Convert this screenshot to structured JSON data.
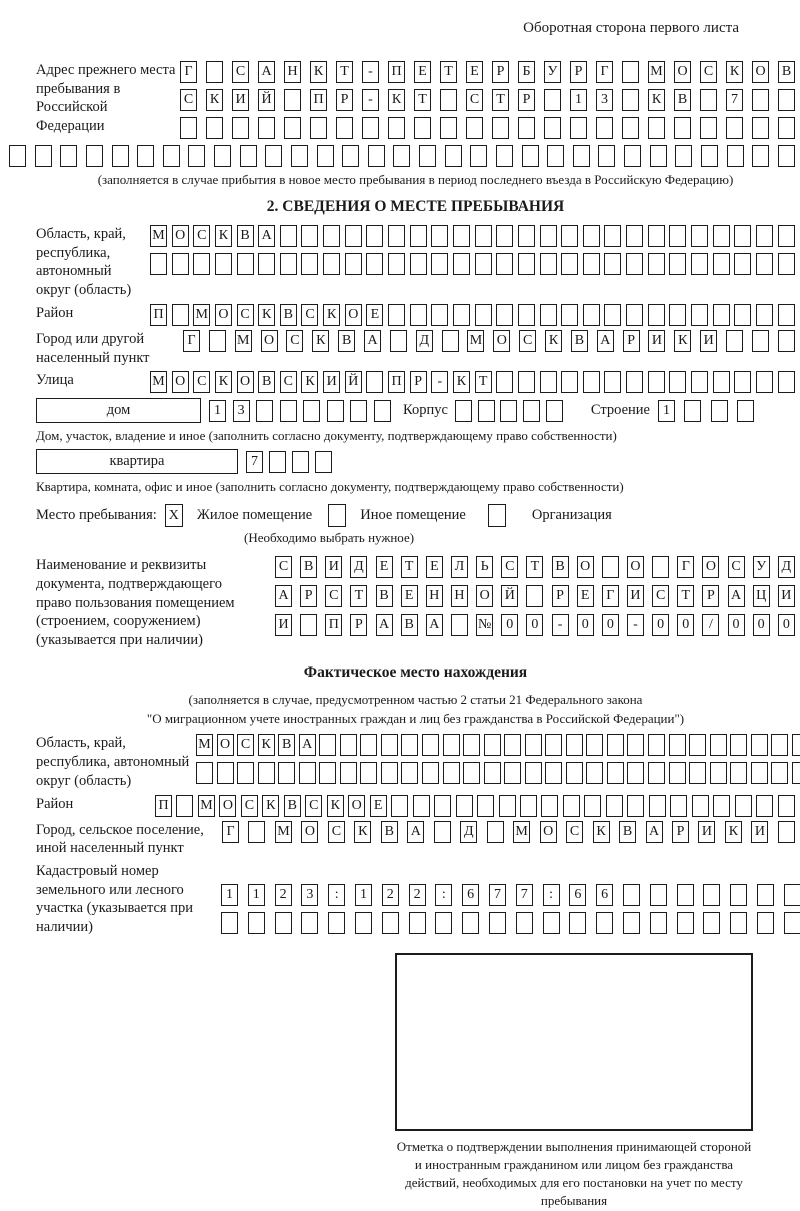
{
  "header": {
    "back_note": "Оборотная сторона первого листа"
  },
  "section1": {
    "label": "Адрес прежнего места пребывания в Российской Федерации",
    "rows": [
      {
        "text": "Г САНКТ-ПЕТЕРБУРГ МОСКОВ",
        "len": 24
      },
      {
        "text": "СКИЙ ПР-КТ СТР 13 КВ 7",
        "len": 24
      },
      {
        "text": "",
        "len": 24
      },
      {
        "text": "",
        "len": 31
      }
    ],
    "caption": "(заполняется в случае прибытия в новое место пребывания в период последнего въезда в Российскую Федерацию)"
  },
  "section2": {
    "title": "2. СВЕДЕНИЯ О МЕСТЕ ПРЕБЫВАНИЯ",
    "oblast": {
      "label": "Область, край, республика, автономный округ (область)",
      "rows": [
        {
          "text": "МОСКВА",
          "len": 30
        },
        {
          "text": "",
          "len": 30
        }
      ]
    },
    "raion": {
      "label": "Район",
      "rows": [
        {
          "text": "П МОСКВСКОЕ",
          "len": 30
        }
      ]
    },
    "gorod": {
      "label": "Город или другой населенный пункт",
      "rows": [
        {
          "text": "Г МОСКВА Д МОСКВАРИКИ",
          "len": 24
        }
      ]
    },
    "ulitsa": {
      "label": "Улица",
      "rows": [
        {
          "text": "МОСКОВСКИЙ ПР-КТ",
          "len": 30
        }
      ]
    },
    "house": {
      "box_label": "дом",
      "cells": {
        "text": "13",
        "len": 8
      },
      "korpus_label": "Корпус",
      "korpus_cells": {
        "text": "",
        "len": 5
      },
      "stroenie_label": "Строение",
      "stroenie_cells": {
        "text": "1",
        "len": 4
      },
      "caption": "Дом, участок, владение и иное (заполнить согласно документу, подтверждающему право собственности)"
    },
    "flat": {
      "box_label": "квартира",
      "cells": {
        "text": "7",
        "len": 4
      },
      "caption": "Квартира, комната, офис и иное (заполнить согласно документу, подтверждающему право собственности)"
    },
    "stay_type": {
      "label": "Место пребывания:",
      "options": [
        {
          "label": "Жилое помещение",
          "mark": "X"
        },
        {
          "label": "Иное помещение",
          "mark": ""
        },
        {
          "label": "Организация",
          "mark": ""
        }
      ],
      "hint": "(Необходимо выбрать нужное)"
    },
    "doc": {
      "label": "Наименование и реквизиты документа, подтверждающего право пользования помещением (строением, сооружением) (указывается при наличии)",
      "rows": [
        {
          "text": "СВИДЕТЕЛЬСТВО О ГОСУД",
          "len": 21
        },
        {
          "text": "АРСТВЕННОЙ РЕГИСТРАЦИ",
          "len": 21
        },
        {
          "text": "И ПРАВА №00-00-00/000",
          "len": 21
        }
      ]
    }
  },
  "section3": {
    "title": "Фактическое место нахождения",
    "caption_line1": "(заполняется в случае, предусмотренном частью 2 статьи 21 Федерального закона",
    "caption_line2": "\"О миграционном учете иностранных граждан и лиц без гражданства в Российской Федерации\")",
    "oblast": {
      "label": "Область, край, республика, автономный округ (область)",
      "rows": [
        {
          "text": "МОСКВА",
          "len": 30
        },
        {
          "text": "",
          "len": 30
        }
      ]
    },
    "raion": {
      "label": "Район",
      "rows": [
        {
          "text": "П МОСКВСКОЕ",
          "len": 30
        }
      ]
    },
    "gorod": {
      "label": "Город, сельское поселение, иной населенный пункт",
      "rows": [
        {
          "text": "Г МОСКВА Д МОСКВАРИКИ",
          "len": 22
        }
      ]
    },
    "kadastr": {
      "label": "Кадастровый номер земельного или лесного участка (указывается при наличии)",
      "rows": [
        {
          "text": "1123:122:677:66",
          "len": 22
        },
        {
          "text": "",
          "len": 22
        }
      ]
    },
    "stamp_caption": "Отметка о подтверждении выполнения принимающей стороной и иностранным гражданином или лицом без гражданства действий, необходимых для его постановки на учет по месту пребывания"
  }
}
